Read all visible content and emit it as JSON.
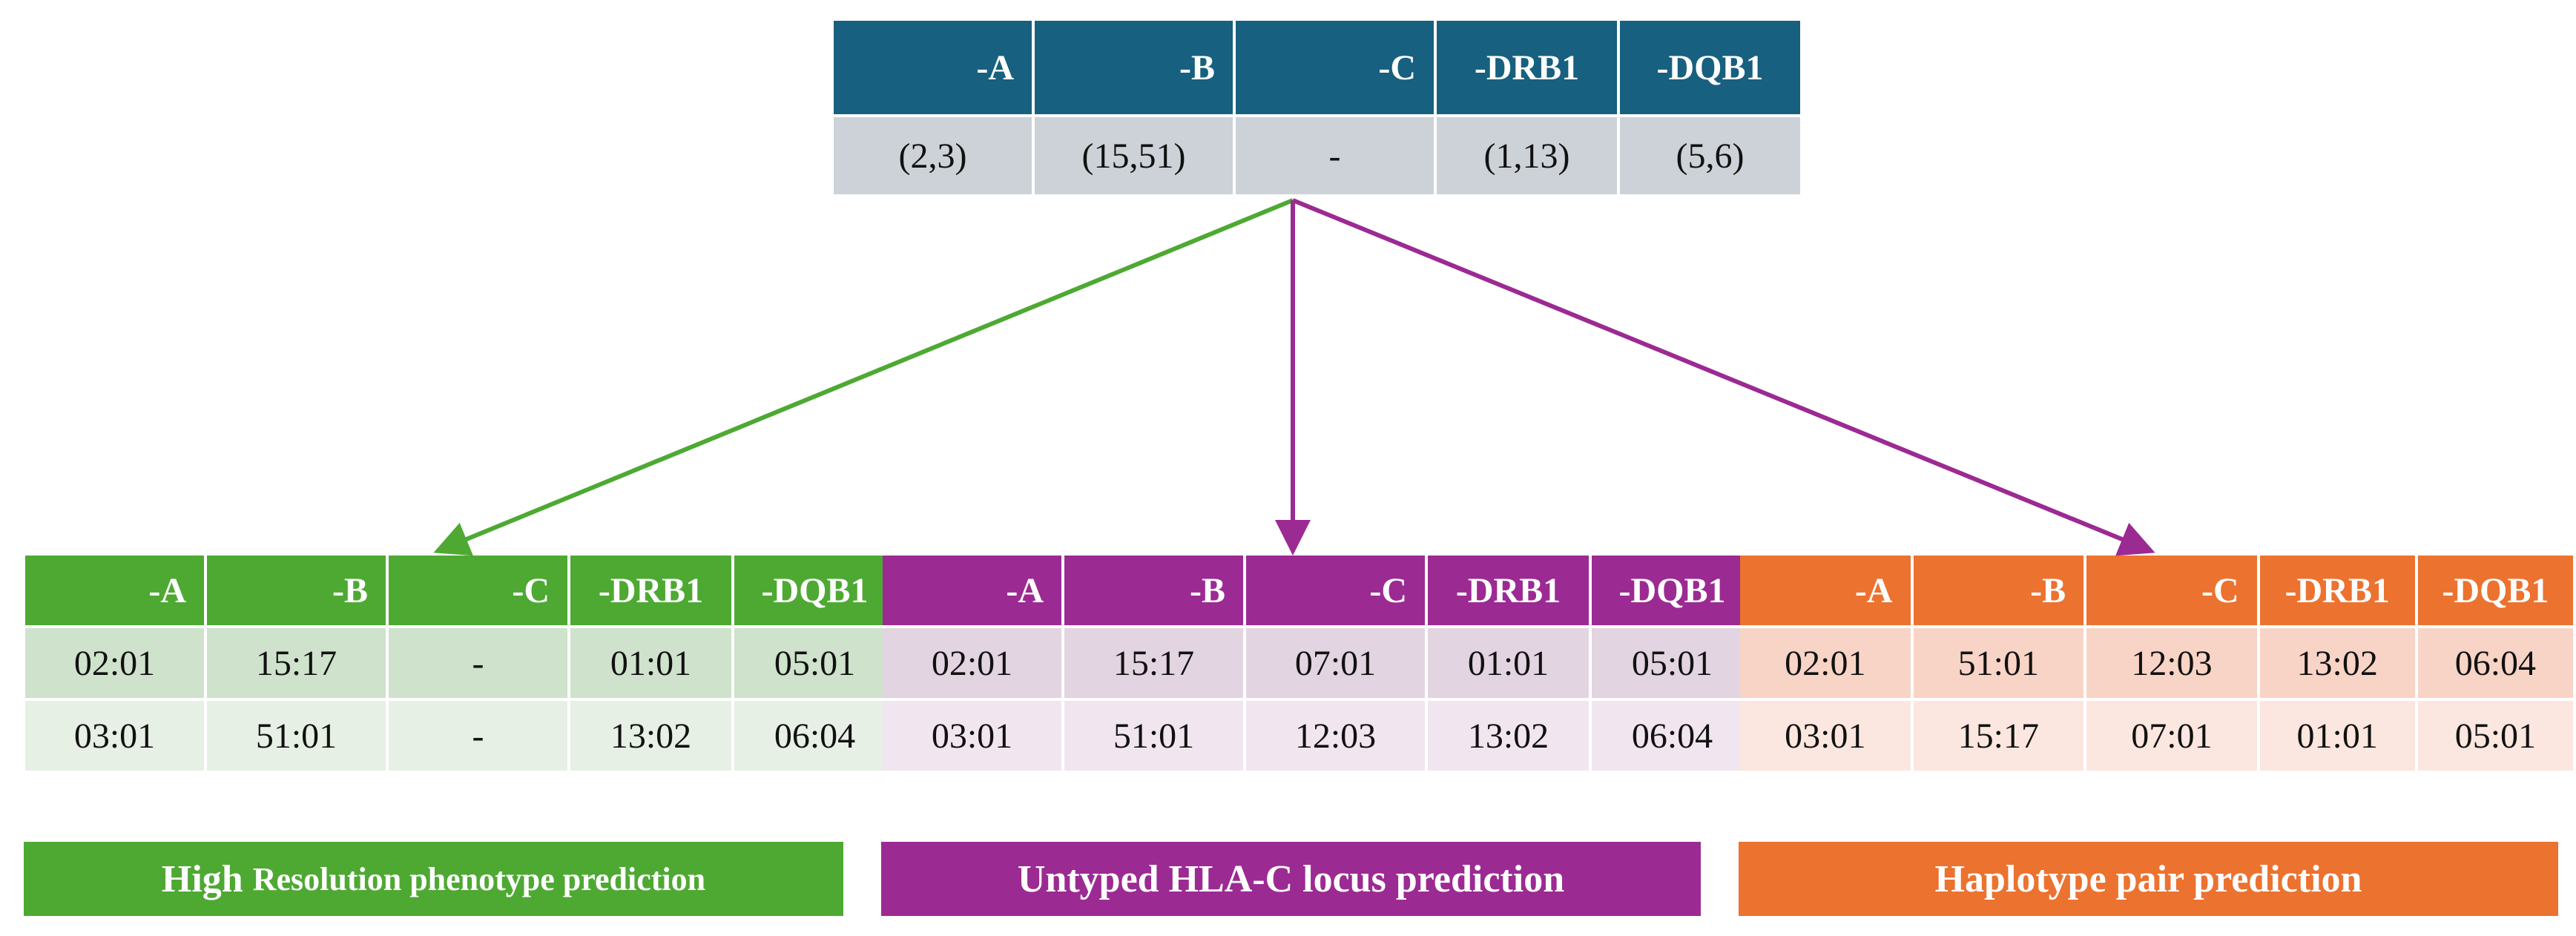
{
  "headers": [
    "-A",
    "-B",
    "-C",
    "-DRB1",
    "-DQB1"
  ],
  "input_row": [
    "(2,3)",
    "(15,51)",
    "-",
    "(1,13)",
    "(5,6)"
  ],
  "panels": {
    "green": {
      "color": "#4ea933",
      "rows": [
        [
          "02:01",
          "15:17",
          "-",
          "01:01",
          "05:01"
        ],
        [
          "03:01",
          "51:01",
          "-",
          "13:02",
          "06:04"
        ]
      ],
      "label_main": "High ",
      "label_small": "Resolution phenotype prediction"
    },
    "purple": {
      "color": "#9c2a93",
      "rows": [
        [
          "02:01",
          "15:17",
          "07:01",
          "01:01",
          "05:01"
        ],
        [
          "03:01",
          "51:01",
          "12:03",
          "13:02",
          "06:04"
        ]
      ],
      "label": "Untyped HLA-C locus prediction"
    },
    "orange": {
      "color": "#ec7230",
      "rows": [
        [
          "02:01",
          "51:01",
          "12:03",
          "13:02",
          "06:04"
        ],
        [
          "03:01",
          "15:17",
          "07:01",
          "01:01",
          "05:01"
        ]
      ],
      "label": "Haplotype pair prediction"
    }
  }
}
